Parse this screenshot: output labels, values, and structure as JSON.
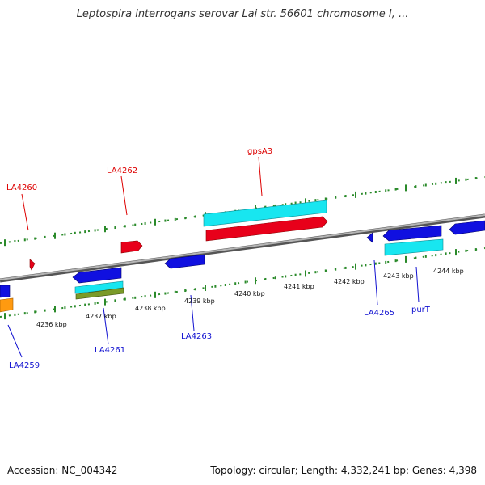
{
  "title": "Leptospira interrogans serovar Lai str. 56601 chromosome I, ...",
  "footer": {
    "accession": "Accession: NC_004342",
    "topology": "Topology: circular; Length: 4,332,241 bp; Genes: 4,398"
  },
  "colors": {
    "forward_gene": "#e8001a",
    "reverse_gene": "#1010e0",
    "rna_cyan": "#18e6f0",
    "orange_gene": "#ff9a10",
    "olive_gene": "#7a9a28",
    "backbone": "#888888",
    "ruler_tick": "#2a8a2a",
    "forward_label": "#dd0000",
    "reverse_label": "#1010d0"
  },
  "ruler": {
    "ticks": [
      "4236 kbp",
      "4237 kbp",
      "4238 kbp",
      "4239 kbp",
      "4240 kbp",
      "4241 kbp",
      "4242 kbp",
      "4243 kbp",
      "4244 kbp"
    ]
  },
  "gene_labels": {
    "forward": [
      "LA4260",
      "LA4262",
      "gpsA3"
    ],
    "reverse": [
      "LA4259",
      "LA4261",
      "LA4263",
      "LA4265",
      "purT"
    ]
  }
}
